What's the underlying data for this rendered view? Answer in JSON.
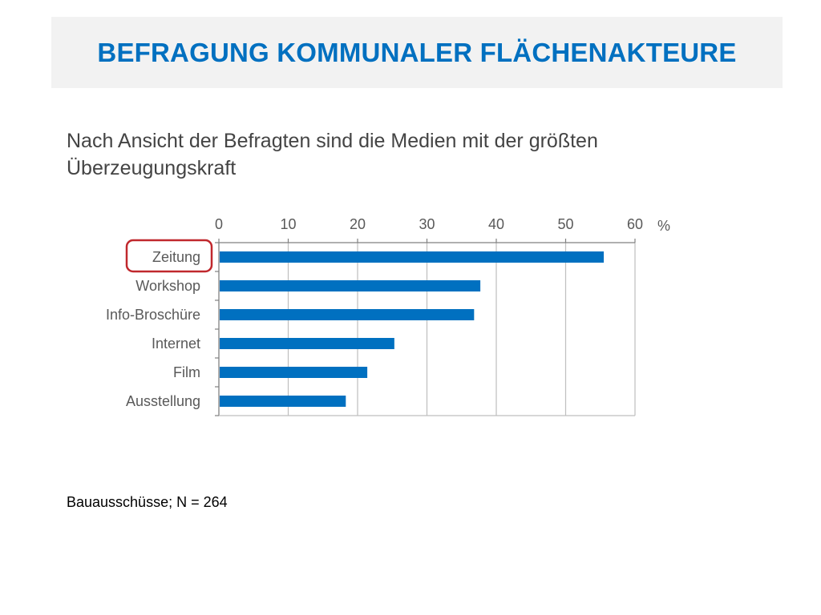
{
  "slide": {
    "title": "BEFRAGUNG KOMMUNALER FLÄCHENAKTEURE",
    "subtitle": "Nach Ansicht der Befragten sind die Medien mit der größten Überzeugungskraft",
    "footnote": "Bauausschüsse; N = 264"
  },
  "colors": {
    "title": "#0070c0",
    "bar": "#0070c0",
    "highlight": "#c0282d",
    "title_band": "#f2f2f2"
  },
  "chart_data": {
    "type": "bar",
    "orientation": "horizontal",
    "title": "",
    "xlabel": "",
    "ylabel": "",
    "unit": "%",
    "categories": [
      "Zeitung",
      "Workshop",
      "Info-Broschüre",
      "Internet",
      "Film",
      "Ausstellung"
    ],
    "values": [
      55.5,
      37.7,
      36.8,
      25.3,
      21.4,
      18.3
    ],
    "xlim": [
      0,
      60
    ],
    "x_ticks": [
      0,
      10,
      20,
      30,
      40,
      50,
      60
    ],
    "x_axis_position": "top",
    "grid": "vertical",
    "legend": "none",
    "highlighted_category": "Zeitung"
  }
}
